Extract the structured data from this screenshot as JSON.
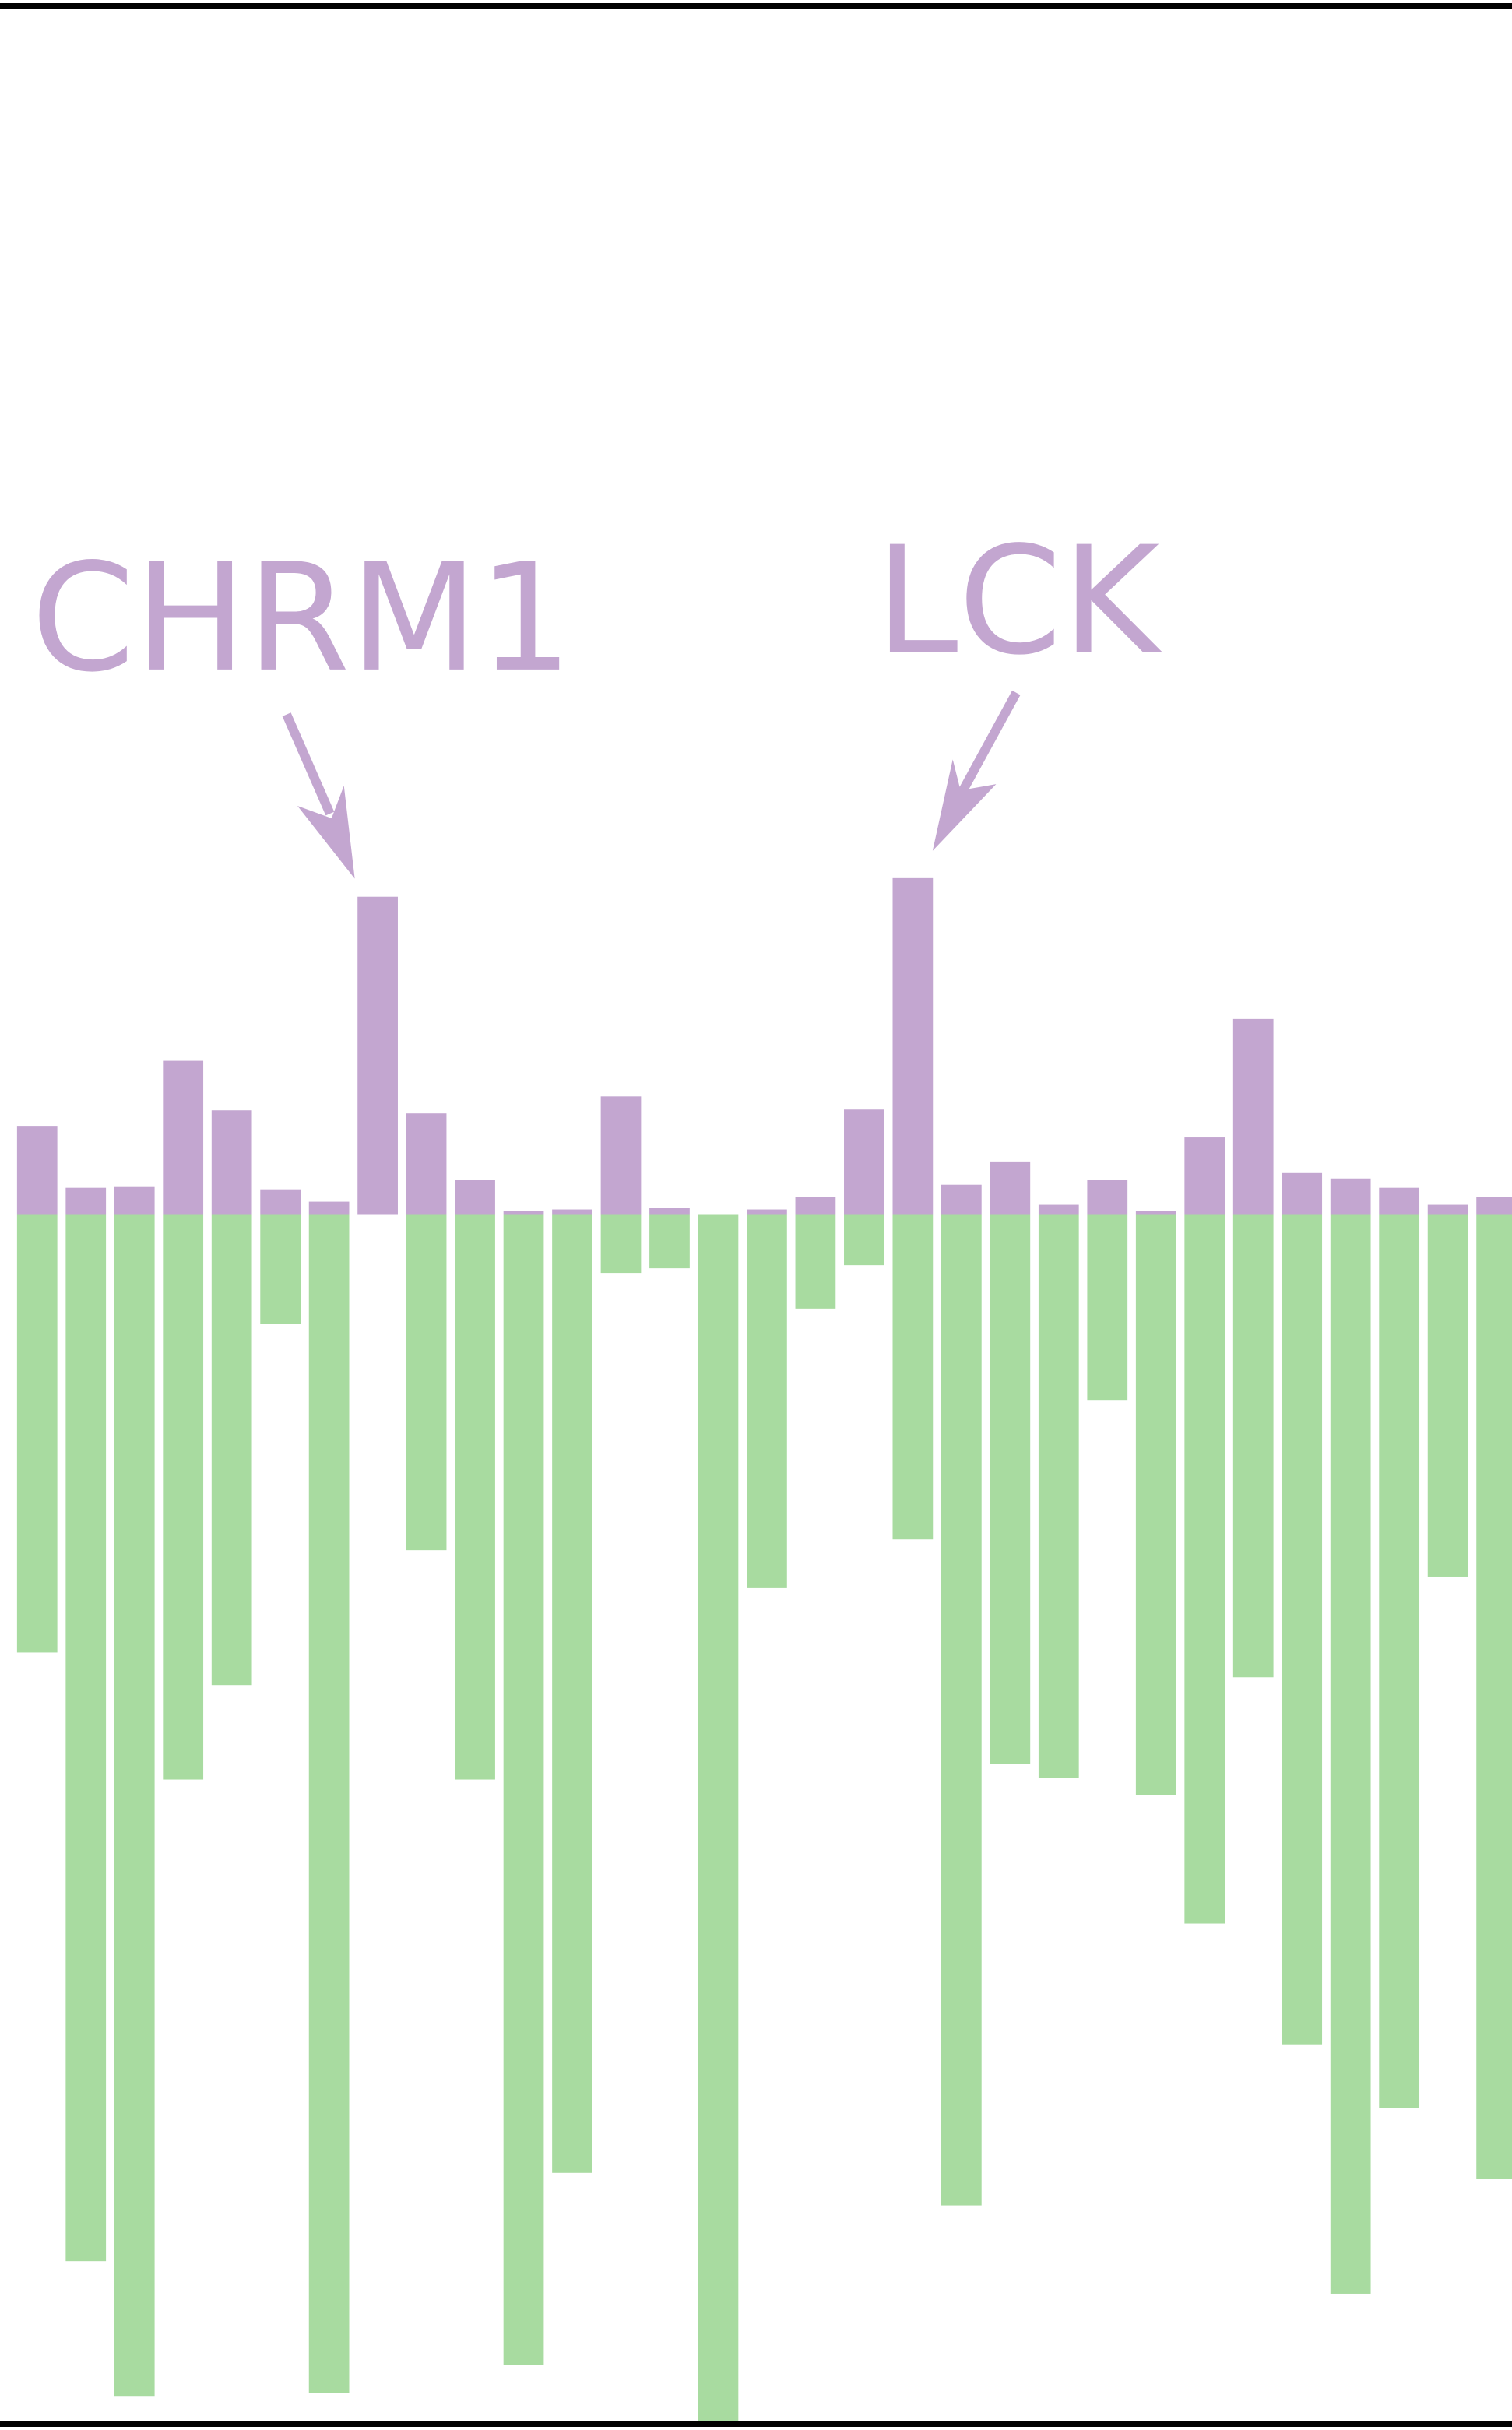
{
  "chart_data": {
    "type": "bar",
    "stacked": "diverging",
    "categories": [
      null,
      null,
      null,
      null,
      null,
      null,
      null,
      null,
      null,
      null,
      null,
      null,
      null,
      null,
      null,
      null,
      null,
      null,
      null,
      null,
      null,
      null,
      null,
      null,
      null,
      null,
      null,
      null,
      null,
      null,
      null
    ],
    "series": [
      {
        "color": "#c3a6d0",
        "values": [
          57,
          17,
          18,
          99,
          67,
          16,
          8,
          205,
          65,
          22,
          2,
          3,
          76,
          4,
          0,
          3,
          11,
          68,
          217,
          19,
          34,
          6,
          22,
          2,
          50,
          126,
          27,
          23,
          17,
          6,
          11
        ]
      },
      {
        "color": "#a8dba0",
        "values": [
          -283,
          -676,
          -763,
          -365,
          -304,
          -71,
          -761,
          0,
          -217,
          -365,
          -743,
          -619,
          -38,
          -35,
          -780,
          -241,
          -61,
          -33,
          -210,
          -640,
          -355,
          -364,
          -120,
          -375,
          -458,
          -299,
          -536,
          -697,
          -577,
          -234,
          -623
        ]
      }
    ],
    "ylim": [
      -780,
      780
    ],
    "annotations": [
      "CHRM1",
      "LCK"
    ]
  }
}
